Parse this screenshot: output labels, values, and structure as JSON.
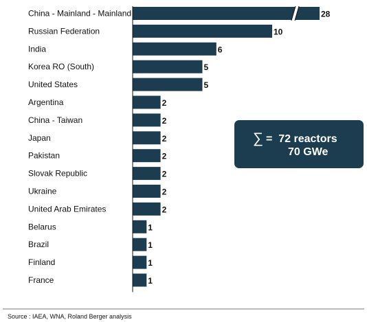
{
  "chart_data": {
    "type": "bar",
    "orientation": "horizontal",
    "categories": [
      "China - Mainland - Mainland",
      "Russian Federation",
      "India",
      "Korea RO (South)",
      "United States",
      "Argentina",
      "China - Taiwan",
      "Japan",
      "Pakistan",
      "Slovak Republic",
      "Ukraine",
      "United Arab Emirates",
      "Belarus",
      "Brazil",
      "Finland",
      "France"
    ],
    "values": [
      28,
      10,
      6,
      5,
      5,
      2,
      2,
      2,
      2,
      2,
      2,
      2,
      1,
      1,
      1,
      1
    ],
    "axis_break_on_first_bar": true,
    "bar_color": "#1c3d4f",
    "grid": false,
    "legend": "none"
  },
  "summary": {
    "symbol": "∑",
    "equals": "=",
    "reactors": "72 reactors",
    "capacity": "70 GWe"
  },
  "source": "Source : IAEA, WNA, Roland Berger analysis"
}
